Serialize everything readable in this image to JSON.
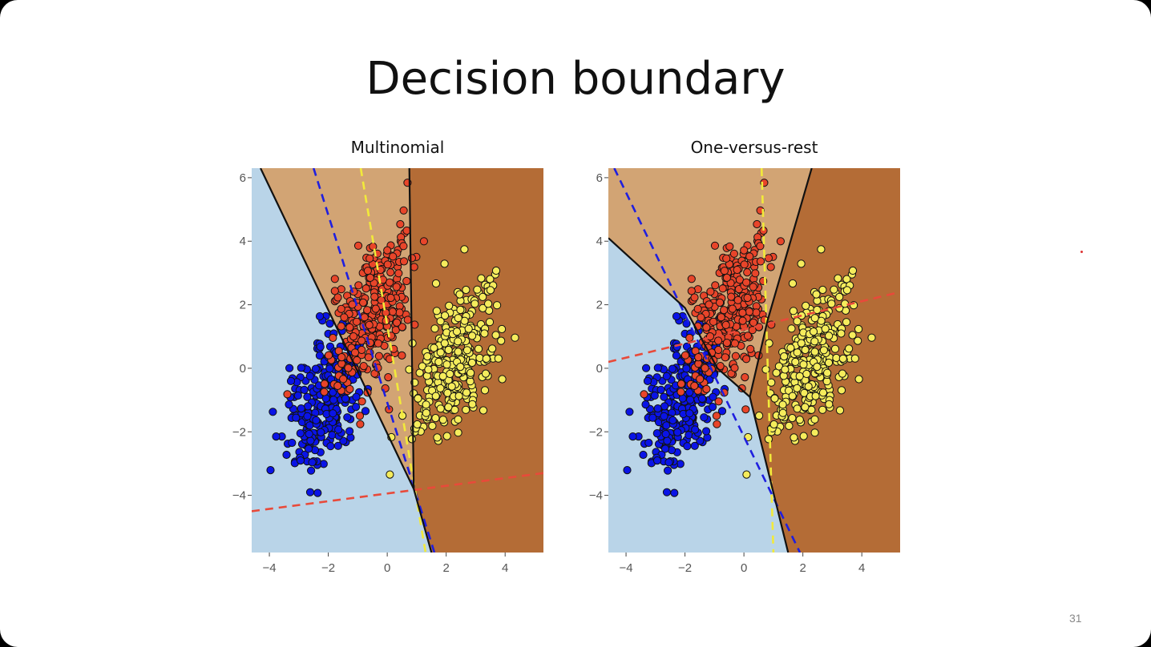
{
  "slide": {
    "title": "Decision boundary",
    "page_number": "31"
  },
  "colors": {
    "class_blue_region": "#b9d4e8",
    "class_red_region": "#d2a474",
    "class_yellow_region": "#b46c36",
    "blue_point": "#0a14e6",
    "red_point": "#e8452a",
    "yellow_point": "#f5ec5c",
    "blue_line": "#1f1fdf",
    "red_line": "#e84a3a",
    "yellow_line": "#f2ea3a"
  },
  "chart_data": [
    {
      "type": "scatter",
      "title": "Multinomial",
      "xlim": [
        -4.6,
        5.3
      ],
      "ylim": [
        -5.8,
        6.3
      ],
      "xticks": [
        "−4",
        "−2",
        "0",
        "2",
        "4"
      ],
      "yticks": [
        "−4",
        "−2",
        "0",
        "2",
        "4",
        "6"
      ],
      "xtick_values": [
        -4,
        -2,
        0,
        2,
        4
      ],
      "ytick_values": [
        -4,
        -2,
        0,
        2,
        4,
        6
      ],
      "grid": false,
      "legend": "none",
      "series": [
        {
          "class": "blue",
          "center": [
            -2.1,
            -0.9
          ],
          "spread": [
            0.55,
            1.2
          ],
          "tilt": -0.35,
          "count": 300
        },
        {
          "class": "red",
          "center": [
            -0.6,
            1.6
          ],
          "spread": [
            0.55,
            1.2
          ],
          "tilt": -0.35,
          "count": 300
        },
        {
          "class": "yellow",
          "center": [
            2.3,
            0.3
          ],
          "spread": [
            0.55,
            1.2
          ],
          "tilt": -0.35,
          "count": 300
        }
      ],
      "regions": [
        {
          "class": "blue",
          "polygon": [
            [
              -4.6,
              6.3
            ],
            [
              -4.3,
              6.3
            ],
            [
              0.9,
              -3.8
            ],
            [
              1.5,
              -5.8
            ],
            [
              -4.6,
              -5.8
            ]
          ]
        },
        {
          "class": "red",
          "polygon": [
            [
              -4.3,
              6.3
            ],
            [
              0.75,
              6.3
            ],
            [
              0.9,
              -3.8
            ]
          ]
        },
        {
          "class": "yellow",
          "polygon": [
            [
              0.75,
              6.3
            ],
            [
              5.3,
              6.3
            ],
            [
              5.3,
              -5.8
            ],
            [
              1.5,
              -5.8
            ],
            [
              0.9,
              -3.8
            ]
          ]
        }
      ],
      "boundaries": [
        [
          [
            -4.3,
            6.3
          ],
          [
            0.9,
            -3.8
          ]
        ],
        [
          [
            0.75,
            6.3
          ],
          [
            0.9,
            -3.8
          ]
        ],
        [
          [
            0.9,
            -3.8
          ],
          [
            1.5,
            -5.8
          ]
        ]
      ],
      "dashed_lines": [
        {
          "class": "blue",
          "points": [
            [
              -2.5,
              6.3
            ],
            [
              1.6,
              -5.8
            ]
          ]
        },
        {
          "class": "yellow",
          "points": [
            [
              -0.9,
              6.3
            ],
            [
              1.3,
              -5.8
            ]
          ]
        },
        {
          "class": "red",
          "points": [
            [
              -4.6,
              -4.5
            ],
            [
              5.3,
              -3.3
            ]
          ]
        }
      ]
    },
    {
      "type": "scatter",
      "title": "One-versus-rest",
      "xlim": [
        -4.6,
        5.3
      ],
      "ylim": [
        -5.8,
        6.3
      ],
      "xticks": [
        "−4",
        "−2",
        "0",
        "2",
        "4"
      ],
      "yticks": [
        "−4",
        "−2",
        "0",
        "2",
        "4",
        "6"
      ],
      "xtick_values": [
        -4,
        -2,
        0,
        2,
        4
      ],
      "ytick_values": [
        -4,
        -2,
        0,
        2,
        4,
        6
      ],
      "grid": false,
      "legend": "none",
      "series": [
        {
          "class": "blue",
          "center": [
            -2.1,
            -0.9
          ],
          "spread": [
            0.55,
            1.2
          ],
          "tilt": -0.35,
          "count": 300
        },
        {
          "class": "red",
          "center": [
            -0.6,
            1.6
          ],
          "spread": [
            0.55,
            1.2
          ],
          "tilt": -0.35,
          "count": 300
        },
        {
          "class": "yellow",
          "center": [
            2.3,
            0.3
          ],
          "spread": [
            0.55,
            1.2
          ],
          "tilt": -0.35,
          "count": 300
        }
      ],
      "regions": [
        {
          "class": "blue",
          "polygon": [
            [
              -4.6,
              4.1
            ],
            [
              -2.0,
              1.9
            ],
            [
              -0.9,
              0.0
            ],
            [
              0.2,
              -0.9
            ],
            [
              1.5,
              -5.8
            ],
            [
              -4.6,
              -5.8
            ]
          ]
        },
        {
          "class": "red",
          "polygon": [
            [
              -4.6,
              6.3
            ],
            [
              2.3,
              6.3
            ],
            [
              0.8,
              1.5
            ],
            [
              0.2,
              -0.9
            ],
            [
              -0.9,
              0.0
            ],
            [
              -2.0,
              1.9
            ],
            [
              -4.6,
              4.1
            ]
          ]
        },
        {
          "class": "yellow",
          "polygon": [
            [
              2.3,
              6.3
            ],
            [
              5.3,
              6.3
            ],
            [
              5.3,
              -5.8
            ],
            [
              1.5,
              -5.8
            ],
            [
              0.2,
              -0.9
            ],
            [
              0.8,
              1.5
            ]
          ]
        }
      ],
      "boundaries": [
        [
          [
            -4.6,
            4.1
          ],
          [
            -2.0,
            1.9
          ],
          [
            -0.9,
            0.0
          ],
          [
            0.2,
            -0.9
          ],
          [
            1.5,
            -5.8
          ]
        ],
        [
          [
            2.3,
            6.3
          ],
          [
            0.8,
            1.5
          ],
          [
            0.2,
            -0.9
          ]
        ]
      ],
      "dashed_lines": [
        {
          "class": "blue",
          "points": [
            [
              -4.4,
              6.3
            ],
            [
              1.9,
              -5.8
            ]
          ]
        },
        {
          "class": "yellow",
          "points": [
            [
              0.6,
              6.3
            ],
            [
              1.0,
              -5.8
            ]
          ]
        },
        {
          "class": "red",
          "points": [
            [
              -4.6,
              0.2
            ],
            [
              5.3,
              2.4
            ]
          ]
        }
      ]
    }
  ]
}
